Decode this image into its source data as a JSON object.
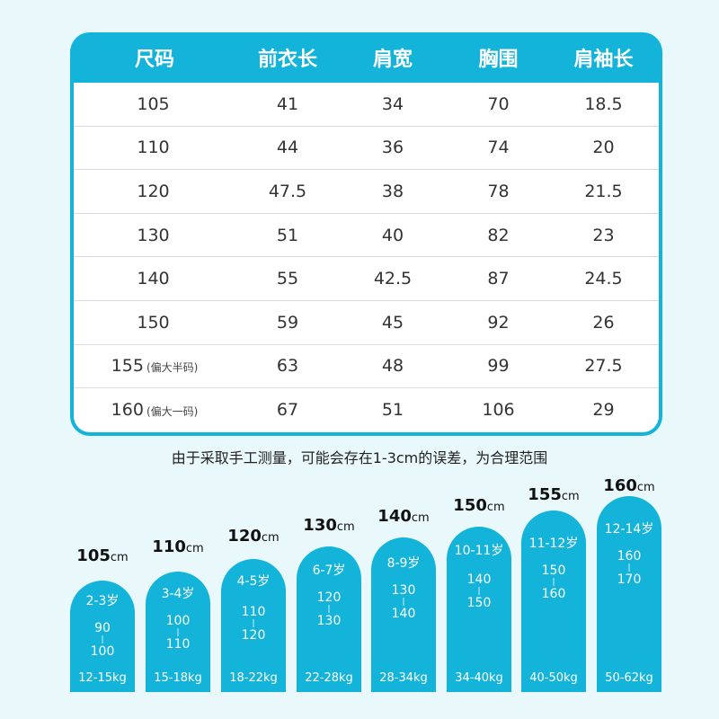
{
  "table": {
    "headers": [
      "尺码",
      "前衣长",
      "肩宽",
      "胸围",
      "肩袖长"
    ],
    "rows": [
      {
        "size": "105",
        "note": "",
        "front_length": "41",
        "shoulder": "34",
        "chest": "70",
        "sleeve": "18.5"
      },
      {
        "size": "110",
        "note": "",
        "front_length": "44",
        "shoulder": "36",
        "chest": "74",
        "sleeve": "20"
      },
      {
        "size": "120",
        "note": "",
        "front_length": "47.5",
        "shoulder": "38",
        "chest": "78",
        "sleeve": "21.5"
      },
      {
        "size": "130",
        "note": "",
        "front_length": "51",
        "shoulder": "40",
        "chest": "82",
        "sleeve": "23"
      },
      {
        "size": "140",
        "note": "",
        "front_length": "55",
        "shoulder": "42.5",
        "chest": "87",
        "sleeve": "24.5"
      },
      {
        "size": "150",
        "note": "",
        "front_length": "59",
        "shoulder": "45",
        "chest": "92",
        "sleeve": "26"
      },
      {
        "size": "155",
        "note": "(偏大半码)",
        "front_length": "63",
        "shoulder": "48",
        "chest": "99",
        "sleeve": "27.5"
      },
      {
        "size": "160",
        "note": "(偏大一码)",
        "front_length": "67",
        "shoulder": "51",
        "chest": "106",
        "sleeve": "29"
      }
    ]
  },
  "note": "由于采取手工测量，可能会存在1-3cm的误差，为合理范围",
  "size_chart": {
    "unit": "cm",
    "columns": [
      {
        "height": "105",
        "age": "2-3岁",
        "range_from": "90",
        "range_to": "100",
        "weight": "12-15kg"
      },
      {
        "height": "110",
        "age": "3-4岁",
        "range_from": "100",
        "range_to": "110",
        "weight": "15-18kg"
      },
      {
        "height": "120",
        "age": "4-5岁",
        "range_from": "110",
        "range_to": "120",
        "weight": "18-22kg"
      },
      {
        "height": "130",
        "age": "6-7岁",
        "range_from": "120",
        "range_to": "130",
        "weight": "22-28kg"
      },
      {
        "height": "140",
        "age": "8-9岁",
        "range_from": "130",
        "range_to": "140",
        "weight": "28-34kg"
      },
      {
        "height": "150",
        "age": "10-11岁",
        "range_from": "140",
        "range_to": "150",
        "weight": "34-40kg"
      },
      {
        "height": "155",
        "age": "11-12岁",
        "range_from": "150",
        "range_to": "160",
        "weight": "40-50kg"
      },
      {
        "height": "160",
        "age": "12-14岁",
        "range_from": "160",
        "range_to": "170",
        "weight": "50-62kg"
      }
    ]
  }
}
